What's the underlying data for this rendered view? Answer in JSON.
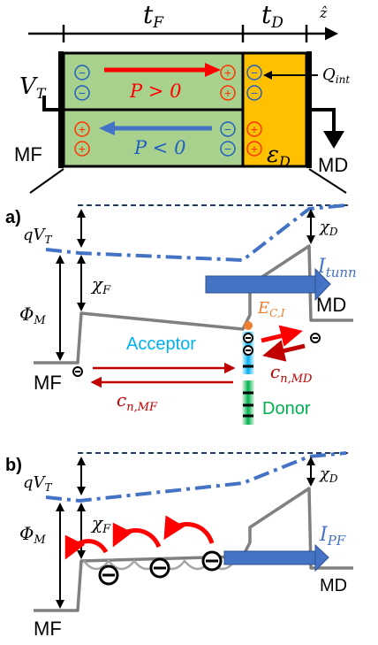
{
  "top": {
    "dim_tf": {
      "base": "t",
      "sub": "F"
    },
    "dim_td": {
      "base": "t",
      "sub": "D"
    },
    "z_label": "ẑ",
    "vt": {
      "base": "V",
      "sub": "T"
    },
    "qint": {
      "base": "Q",
      "sub": "int"
    },
    "p_pos": "P > 0",
    "p_neg": "P < 0",
    "eps": {
      "base": "ε",
      "sub": "D"
    },
    "mf": "MF",
    "md": "MD",
    "minus": "−",
    "plus": "+"
  },
  "panel_a": {
    "tag": "a)",
    "qvt": {
      "base": "qV",
      "sub": "T"
    },
    "chi_d": {
      "base": "χ",
      "sub": "D"
    },
    "chi_f": {
      "base": "χ",
      "sub": "F"
    },
    "phi_m": {
      "base": "Φ",
      "sub": "M"
    },
    "i_tunn": {
      "base": "I",
      "sub": "tunn"
    },
    "md": "MD",
    "eci": {
      "base": "E",
      "sub": "C,I"
    },
    "acceptor": "Acceptor",
    "donor": "Donor",
    "mf": "MF",
    "cn_md": {
      "base": "c",
      "sub": "n,MD"
    },
    "cn_mf": {
      "base": "c",
      "sub": "n,MF"
    },
    "minus": "−"
  },
  "panel_b": {
    "tag": "b)",
    "qvt": {
      "base": "qV",
      "sub": "T"
    },
    "chi_d": {
      "base": "χ",
      "sub": "D"
    },
    "chi_f": {
      "base": "χ",
      "sub": "F"
    },
    "phi_m": {
      "base": "Φ",
      "sub": "M"
    },
    "i_pf": {
      "base": "I",
      "sub": "PF"
    },
    "md": "MD",
    "mf": "MF",
    "minus": "−"
  },
  "colors": {
    "ferro_green": "#a9d18e",
    "dielectric_orange": "#ffc000",
    "red": "#ff0000",
    "dark_red": "#c00000",
    "blue": "#4472c4",
    "band_gray": "#808080",
    "navy_dash": "#1f3864",
    "acceptor_cyan": "#00b0f0",
    "donor_green": "#00b050",
    "eci_orange": "#ed7d31",
    "plus_orange": "#ff3300"
  }
}
